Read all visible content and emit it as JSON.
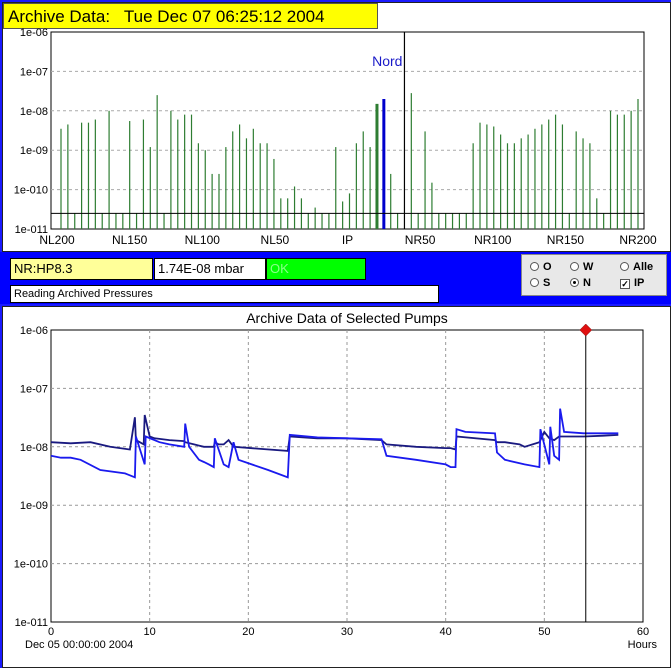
{
  "header": {
    "title": "Archive Data:   Tue Dec 07 06:25:12 2004"
  },
  "colors": {
    "frame": "#1a1aff",
    "title_bg": "#ffff00",
    "bar_green": "#2e7d32",
    "selected_bar": "#0000cc",
    "line_dark": "#1a1a80",
    "line_blue": "#1a1aee",
    "marker": "#e01010",
    "status_ok": "#00ff00"
  },
  "top_chart": {
    "chart_data": {
      "type": "bar",
      "yscale": "log",
      "ylim": [
        1e-11,
        1e-06
      ],
      "y_ticks": [
        "1e-06",
        "1e-07",
        "1e-08",
        "1e-09",
        "1e-010",
        "1e-011"
      ],
      "x_ticks": [
        "NL200",
        "NL150",
        "NL100",
        "NL50",
        "IP",
        "NR50",
        "NR100",
        "NR150",
        "NR200"
      ],
      "annotation": "Nord",
      "threshold": 2.5e-11,
      "selected": "NR:HP8.3",
      "values": [
        3.5e-09,
        4.5e-09,
        2.5e-11,
        5e-09,
        5e-09,
        6e-09,
        2.5e-11,
        1e-08,
        2.5e-11,
        2.5e-11,
        5.5e-09,
        2.5e-11,
        6e-09,
        1.2e-09,
        2.5e-08,
        2.5e-11,
        1e-08,
        6e-09,
        8e-09,
        8e-09,
        1.5e-09,
        1e-09,
        2.5e-10,
        2.5e-10,
        1.2e-09,
        3e-09,
        4.5e-09,
        2e-09,
        3.5e-09,
        1.5e-09,
        1.5e-09,
        6e-10,
        6e-11,
        6e-11,
        1.2e-10,
        6e-11,
        2.5e-11,
        3.5e-11,
        2.5e-11,
        2.5e-11,
        1.2e-09,
        5e-11,
        8e-11,
        1.5e-09,
        3e-09,
        1.2e-09,
        1.5e-08,
        2e-08,
        2.5e-10,
        2.5e-11,
        1e-06,
        2.8e-08,
        2.5e-11,
        3e-09,
        1.5e-10,
        2.5e-11,
        2.5e-11,
        2.5e-11,
        2.5e-11,
        2.5e-11,
        1.5e-09,
        5e-09,
        4.5e-09,
        4e-09,
        2.5e-09,
        1.5e-09,
        1.5e-09,
        2e-09,
        2.5e-09,
        3.5e-09,
        4.5e-09,
        6e-09,
        8e-09,
        4.5e-09,
        2.5e-11,
        3e-09,
        2e-09,
        1.5e-09,
        6e-11,
        2.5e-11,
        1e-08,
        8e-09,
        8e-09,
        1e-08,
        2e-08
      ]
    }
  },
  "info_bar": {
    "pump_name": "NR:HP8.3",
    "pressure": "1.74E-08 mbar",
    "status": "OK",
    "status_line": "Reading Archived Pressures"
  },
  "selector": {
    "options": [
      {
        "label": "O",
        "checked": false
      },
      {
        "label": "W",
        "checked": false
      },
      {
        "label": "Alle",
        "checked": false
      },
      {
        "label": "S",
        "checked": false
      },
      {
        "label": "N",
        "checked": true
      }
    ],
    "ip_checkbox": {
      "label": "IP",
      "checked": true,
      "mark": "✓"
    }
  },
  "bottom_chart": {
    "chart_data": {
      "type": "line",
      "title": "Archive Data of Selected Pumps",
      "xlabel": "Hours",
      "x_origin_label": "Dec 05 00:00:00 2004",
      "xlim": [
        0,
        60
      ],
      "ylim": [
        1e-11,
        1e-06
      ],
      "yscale": "log",
      "x_ticks": [
        "0",
        "10",
        "20",
        "30",
        "40",
        "50",
        "60"
      ],
      "y_ticks": [
        "1e-06",
        "1e-07",
        "1e-08",
        "1e-09",
        "1e-010",
        "1e-011"
      ],
      "cursor_x": 54.2,
      "series": [
        {
          "x": [
            0,
            2,
            4,
            6,
            8,
            8.5,
            8.6,
            9,
            9.4,
            9.5,
            10,
            10.5,
            12,
            13.5,
            13.6,
            14.5,
            15,
            15.5,
            16.5,
            16.6,
            17,
            17.5,
            18,
            18.5,
            24,
            24.2,
            27,
            30,
            33.5,
            34,
            37,
            40,
            40.5,
            41,
            41.1,
            45,
            45.2,
            46,
            47.5,
            48,
            49.5,
            50,
            50.5,
            51,
            51.5,
            52,
            54,
            56,
            57.5
          ],
          "y": [
            1.2e-08,
            1.15e-08,
            1.2e-08,
            1e-08,
            9e-09,
            3.2e-08,
            1.3e-08,
            1.2e-08,
            1.1e-08,
            3.5e-08,
            1.5e-08,
            1.4e-08,
            1.3e-08,
            1.25e-08,
            1.2e-08,
            1.1e-08,
            1.05e-08,
            1e-08,
            1e-08,
            1.2e-08,
            1.1e-08,
            1.1e-08,
            1.3e-08,
            1e-08,
            8.5e-09,
            1.5e-08,
            1.4e-08,
            1.4e-08,
            1.3e-08,
            1.1e-08,
            1e-08,
            9.5e-09,
            9.5e-09,
            9e-09,
            1.5e-08,
            1.3e-08,
            1.2e-08,
            1.2e-08,
            1.1e-08,
            1e-08,
            1.2e-08,
            1.8e-08,
            1.4e-08,
            1.3e-08,
            1.5e-08,
            1.5e-08,
            1.5e-08,
            1.55e-08,
            1.6e-08
          ]
        },
        {
          "x": [
            0,
            1,
            2,
            3,
            5,
            7.5,
            8.5,
            8.6,
            9.5,
            9.6,
            11,
            12,
            13.5,
            13.6,
            14,
            15,
            15.5,
            16,
            16.5,
            16.6,
            17.5,
            18,
            18.5,
            19,
            22,
            24,
            24.2,
            27,
            30,
            33.5,
            34,
            37,
            40,
            40.5,
            41,
            41.1,
            42,
            45,
            45.2,
            46,
            48,
            49.5,
            49.6,
            50.5,
            50.6,
            51,
            51.5,
            51.6,
            52,
            54,
            57.5
          ],
          "y": [
            7e-09,
            6.5e-09,
            6.5e-09,
            6e-09,
            4e-09,
            3.5e-09,
            3e-09,
            1.5e-08,
            5e-09,
            1.5e-08,
            1.2e-08,
            1.1e-08,
            1e-08,
            2.5e-08,
            1e-08,
            6e-09,
            5.5e-09,
            5e-09,
            4.5e-09,
            1.4e-08,
            5e-09,
            4.5e-09,
            1.2e-08,
            6e-09,
            4e-09,
            3e-09,
            1.6e-08,
            1.45e-08,
            1.4e-08,
            1.35e-08,
            7e-09,
            6e-09,
            5e-09,
            4.5e-09,
            4.5e-09,
            2e-08,
            1.8e-08,
            1.7e-08,
            8e-09,
            6e-09,
            5e-09,
            4.5e-09,
            2e-08,
            5e-09,
            2.2e-08,
            7e-09,
            6e-09,
            4.5e-08,
            1.8e-08,
            1.7e-08,
            1.7e-08
          ]
        }
      ]
    }
  }
}
